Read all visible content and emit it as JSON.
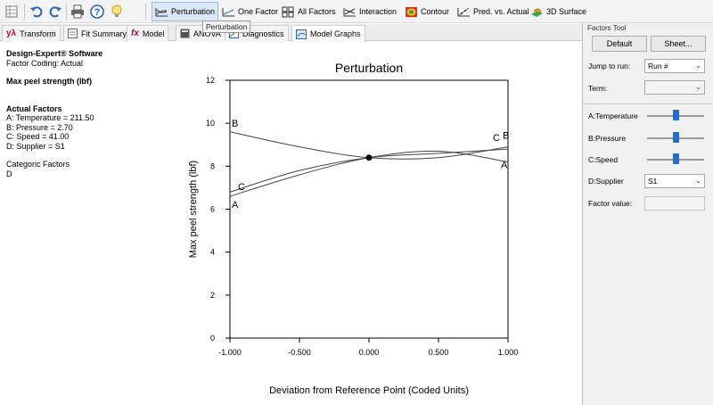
{
  "toolbar": {
    "graph_buttons": [
      {
        "label": "Perturbation",
        "icon": "perturbation-icon"
      },
      {
        "label": "One Factor",
        "icon": "one-factor-icon"
      },
      {
        "label": "All Factors",
        "icon": "all-factors-icon"
      },
      {
        "label": "Interaction",
        "icon": "interaction-icon"
      },
      {
        "label": "Contour",
        "icon": "contour-icon"
      },
      {
        "label": "Pred. vs. Actual",
        "icon": "pred-vs-actual-icon"
      },
      {
        "label": "3D Surface",
        "icon": "3d-surface-icon"
      }
    ],
    "tooltip": "Perturbation"
  },
  "tabs": [
    {
      "label": "Transform",
      "icon": "y-lambda"
    },
    {
      "label": "Fit Summary",
      "icon": "fit-summary-icon"
    },
    {
      "label": "Model",
      "icon": "fx"
    },
    {
      "label": "ANOVA",
      "icon": "anova-icon"
    },
    {
      "label": "Diagnostics",
      "icon": "diagnostics-icon"
    },
    {
      "label": "Model Graphs",
      "icon": "model-graphs-icon"
    }
  ],
  "info": {
    "software": "Design-Expert® Software",
    "coding": "Factor Coding: Actual",
    "response": "Max peel strength (lbf)",
    "actual_factors_title": "Actual Factors",
    "actual_factors": [
      "A: Temperature = 211.50",
      "B: Pressure = 2.70",
      "C: Speed = 41.00",
      "D: Supplier = S1"
    ],
    "categoric_title": "Categoric Factors",
    "categoric_value": "D"
  },
  "chart_data": {
    "type": "line",
    "title": "Perturbation",
    "xlabel": "Deviation from Reference Point (Coded Units)",
    "ylabel": "Max peel strength (lbf)",
    "xlim": [
      -1.0,
      1.0
    ],
    "ylim": [
      0,
      12
    ],
    "x_ticks": [
      "-1.000",
      "-0.500",
      "0.000",
      "0.500",
      "1.000"
    ],
    "y_ticks": [
      "0",
      "2",
      "4",
      "6",
      "8",
      "10",
      "12"
    ],
    "grid": false,
    "reference_point": {
      "x": 0.0,
      "y": 8.4
    },
    "series": [
      {
        "name": "A",
        "x": [
          -1.0,
          -0.5,
          0.0,
          0.5,
          1.0
        ],
        "y": [
          6.6,
          7.6,
          8.4,
          8.7,
          8.2
        ]
      },
      {
        "name": "B",
        "x": [
          -1.0,
          -0.5,
          0.0,
          0.5,
          1.0
        ],
        "y": [
          9.6,
          8.9,
          8.4,
          8.4,
          8.9
        ]
      },
      {
        "name": "C",
        "x": [
          -1.0,
          -0.5,
          0.0,
          0.5,
          1.0
        ],
        "y": [
          6.8,
          7.8,
          8.4,
          8.6,
          8.8
        ]
      }
    ]
  },
  "panel": {
    "title": "Factors Tool",
    "default_label": "Default",
    "sheet_label": "Sheet...",
    "jump_label": "Jump to run:",
    "jump_value": "Run #",
    "term_label": "Term:",
    "term_value": "",
    "factors": [
      {
        "label": "A:Temperature",
        "level": 0.5
      },
      {
        "label": "B:Pressure",
        "level": 0.5
      },
      {
        "label": "C:Speed",
        "level": 0.5
      }
    ],
    "supplier_label": "D:Supplier",
    "supplier_value": "S1",
    "factor_value_label": "Factor value:"
  },
  "colors": {
    "accent": "#1d6fd1",
    "curve": "#444444"
  }
}
